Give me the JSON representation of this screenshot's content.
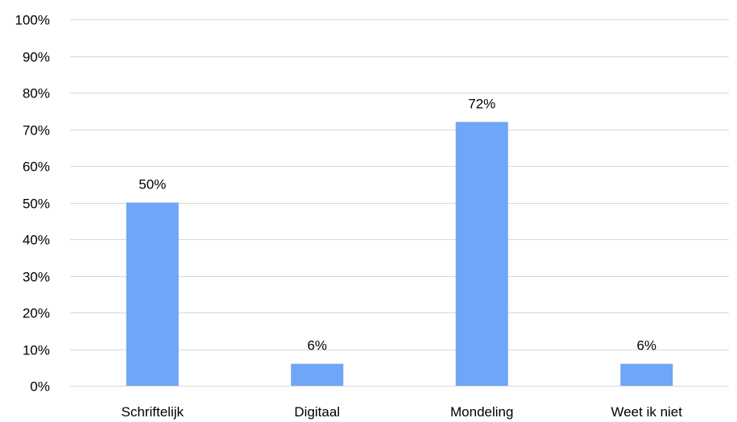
{
  "chart_data": {
    "type": "bar",
    "categories": [
      "Schriftelijk",
      "Digitaal",
      "Mondeling",
      "Weet ik niet"
    ],
    "values": [
      50,
      6,
      72,
      6
    ],
    "data_labels": [
      "50%",
      "6%",
      "72%",
      "6%"
    ],
    "y_ticks": [
      "0%",
      "10%",
      "20%",
      "30%",
      "40%",
      "50%",
      "60%",
      "70%",
      "80%",
      "90%",
      "100%"
    ],
    "ylim": [
      0,
      100
    ],
    "grid": true,
    "legend": "none",
    "colors": {
      "bar": "#6FA6F7",
      "grid": "#D9D9D9",
      "text": "#000000"
    }
  }
}
